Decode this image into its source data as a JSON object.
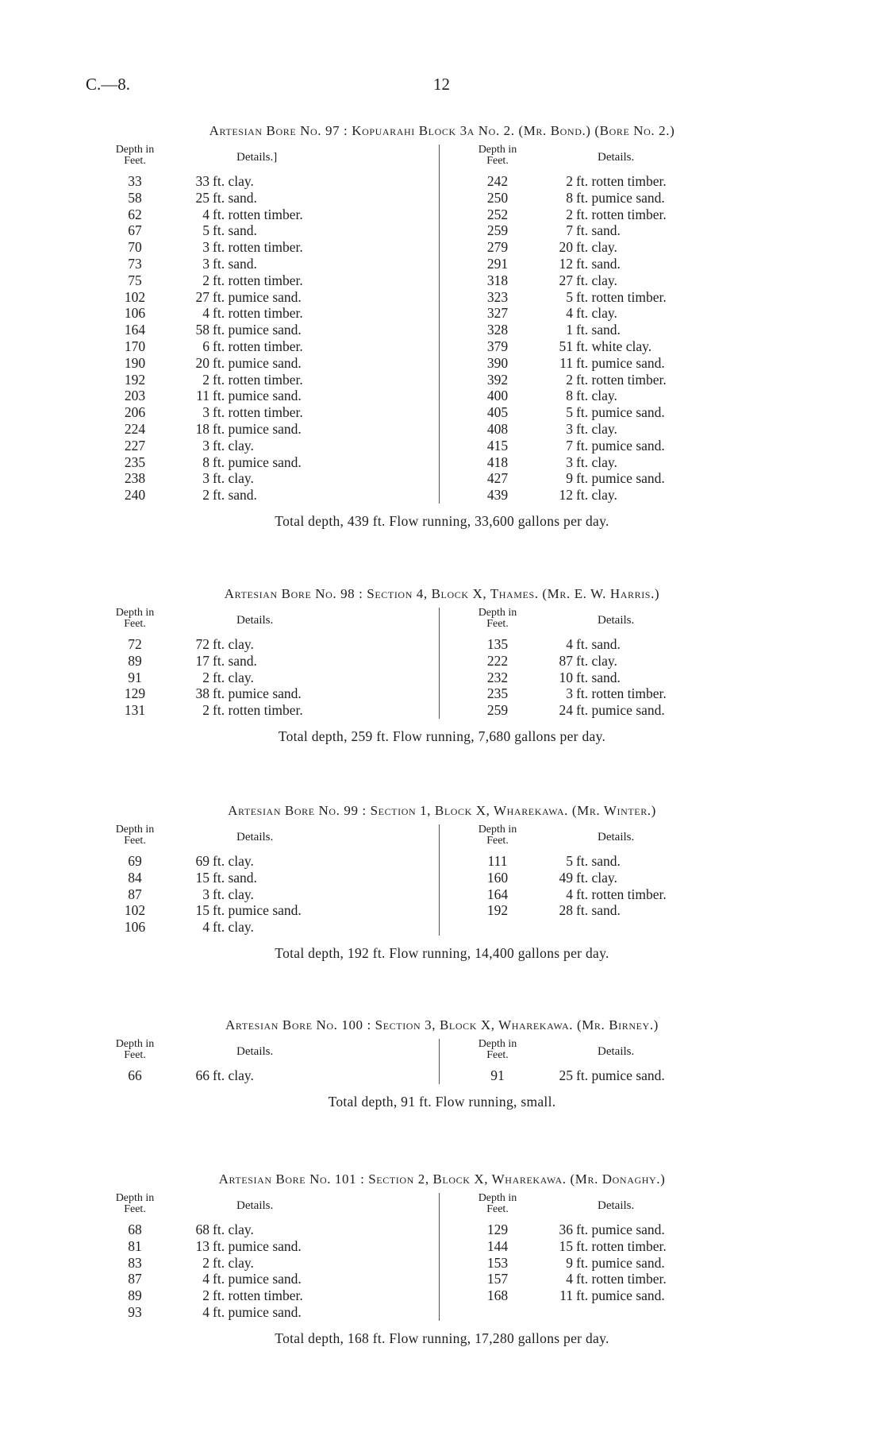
{
  "page": {
    "ref": "C.—8.",
    "number": "12"
  },
  "column_headers": {
    "depth": [
      "Depth in",
      "Feet."
    ],
    "details": "Details."
  },
  "bores": [
    {
      "title": "Artesian Bore No. 97 :  Kopuarahi Block 3a No. 2.  (Mr. Bond.)  (Bore No. 2.)",
      "details_header_left": "Details.]",
      "left": [
        [
          "33",
          "33 ft. clay."
        ],
        [
          "58",
          "25 ft. sand."
        ],
        [
          "62",
          "4 ft. rotten timber."
        ],
        [
          "67",
          "5 ft. sand."
        ],
        [
          "70",
          "3 ft. rotten timber."
        ],
        [
          "73",
          "3 ft. sand."
        ],
        [
          "75",
          "2 ft. rotten timber."
        ],
        [
          "102",
          "27 ft. pumice sand."
        ],
        [
          "106",
          "4 ft. rotten timber."
        ],
        [
          "164",
          "58 ft. pumice sand."
        ],
        [
          "170",
          "6 ft. rotten timber."
        ],
        [
          "190",
          "20 ft. pumice sand."
        ],
        [
          "192",
          "2 ft. rotten timber."
        ],
        [
          "203",
          "11 ft. pumice sand."
        ],
        [
          "206",
          "3 ft. rotten timber."
        ],
        [
          "224",
          "18 ft. pumice sand."
        ],
        [
          "227",
          "3 ft. clay."
        ],
        [
          "235",
          "8 ft. pumice sand."
        ],
        [
          "238",
          "3 ft. clay."
        ],
        [
          "240",
          "2 ft. sand."
        ]
      ],
      "right": [
        [
          "242",
          "2 ft. rotten timber."
        ],
        [
          "250",
          "8 ft. pumice sand."
        ],
        [
          "252",
          "2 ft. rotten timber."
        ],
        [
          "259",
          "7 ft. sand."
        ],
        [
          "279",
          "20 ft. clay."
        ],
        [
          "291",
          "12 ft. sand."
        ],
        [
          "318",
          "27 ft. clay."
        ],
        [
          "323",
          "5 ft. rotten timber."
        ],
        [
          "327",
          "4 ft. clay."
        ],
        [
          "328",
          "1 ft. sand."
        ],
        [
          "379",
          "51 ft. white clay."
        ],
        [
          "390",
          "11 ft. pumice sand."
        ],
        [
          "392",
          "2 ft. rotten timber."
        ],
        [
          "400",
          "8 ft. clay."
        ],
        [
          "405",
          "5 ft. pumice sand."
        ],
        [
          "408",
          "3 ft. clay."
        ],
        [
          "415",
          "7 ft. pumice sand."
        ],
        [
          "418",
          "3 ft. clay."
        ],
        [
          "427",
          "9 ft. pumice sand."
        ],
        [
          "439",
          "12 ft. clay."
        ]
      ],
      "total": "Total depth, 439 ft.   Flow running, 33,600 gallons per day."
    },
    {
      "title": "Artesian Bore No. 98 :  Section 4, Block X, Thames.  (Mr. E. W. Harris.)",
      "details_header_left": "Details.",
      "left": [
        [
          "72",
          "72 ft. clay."
        ],
        [
          "89",
          "17 ft. sand."
        ],
        [
          "91",
          "2 ft. clay."
        ],
        [
          "129",
          "38 ft. pumice sand."
        ],
        [
          "131",
          "2 ft. rotten timber."
        ]
      ],
      "right": [
        [
          "135",
          "4 ft. sand."
        ],
        [
          "222",
          "87 ft. clay."
        ],
        [
          "232",
          "10 ft. sand."
        ],
        [
          "235",
          "3 ft. rotten timber."
        ],
        [
          "259",
          "24 ft. pumice sand."
        ]
      ],
      "total": "Total depth, 259 ft.   Flow running, 7,680 gallons per day."
    },
    {
      "title": "Artesian Bore No. 99 :  Section 1, Block X, Wharekawa.  (Mr. Winter.)",
      "details_header_left": "Details.",
      "left": [
        [
          "69",
          "69 ft. clay."
        ],
        [
          "84",
          "15 ft. sand."
        ],
        [
          "87",
          "3 ft. clay."
        ],
        [
          "102",
          "15 ft. pumice sand."
        ],
        [
          "106",
          "4 ft. clay."
        ]
      ],
      "right": [
        [
          "111",
          "5 ft. sand."
        ],
        [
          "160",
          "49 ft. clay."
        ],
        [
          "164",
          "4 ft. rotten timber."
        ],
        [
          "192",
          "28 ft. sand."
        ]
      ],
      "total": "Total depth, 192 ft.   Flow running, 14,400 gallons per day."
    },
    {
      "title": "Artesian Bore No. 100 :  Section 3, Block X, Wharekawa.  (Mr. Birney.)",
      "details_header_left": "Details.",
      "left": [
        [
          "66",
          "66 ft. clay."
        ]
      ],
      "right": [
        [
          "91",
          "25 ft. pumice sand."
        ]
      ],
      "total": "Total depth, 91 ft.   Flow running, small."
    },
    {
      "title": "Artesian Bore No. 101 :  Section 2, Block X, Wharekawa.  (Mr. Donaghy.)",
      "details_header_left": "Details.",
      "left": [
        [
          "68",
          "68 ft. clay."
        ],
        [
          "81",
          "13 ft. pumice sand."
        ],
        [
          "83",
          "2 ft. clay."
        ],
        [
          "87",
          "4 ft. pumice sand."
        ],
        [
          "89",
          "2 ft. rotten timber."
        ],
        [
          "93",
          "4 ft. pumice sand."
        ]
      ],
      "right": [
        [
          "129",
          "36 ft. pumice sand."
        ],
        [
          "144",
          "15 ft. rotten timber."
        ],
        [
          "153",
          "9 ft. pumice sand."
        ],
        [
          "157",
          "4 ft. rotten timber."
        ],
        [
          "168",
          "11 ft. pumice sand."
        ]
      ],
      "total": "Total depth, 168 ft.   Flow running, 17,280 gallons per day."
    }
  ]
}
